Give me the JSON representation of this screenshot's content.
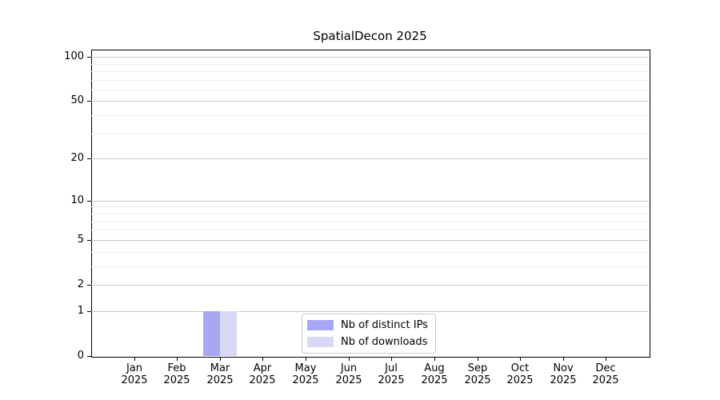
{
  "figure": {
    "title": "SpatialDecon 2025"
  },
  "chart_data": {
    "type": "bar",
    "title": "SpatialDecon 2025",
    "categories": [
      "Jan",
      "Feb",
      "Mar",
      "Apr",
      "May",
      "Jun",
      "Jul",
      "Aug",
      "Sep",
      "Oct",
      "Nov",
      "Dec"
    ],
    "tick_year": "2025",
    "series": [
      {
        "name": "Nb of distinct IPs",
        "color": "#a8a8f2",
        "values": [
          0,
          0,
          1,
          0,
          0,
          0,
          0,
          0,
          0,
          0,
          0,
          0
        ]
      },
      {
        "name": "Nb of downloads",
        "color": "#d9d9f7",
        "values": [
          0,
          0,
          1,
          0,
          0,
          0,
          0,
          0,
          0,
          0,
          0,
          0
        ]
      }
    ],
    "xlabel": "",
    "ylabel": "",
    "yscale": "log1p",
    "ylim": [
      0,
      112
    ],
    "yticks": [
      0,
      1,
      2,
      5,
      10,
      20,
      50,
      100
    ],
    "yticks_minor": [
      3,
      4,
      6,
      7,
      8,
      9,
      30,
      40,
      60,
      70,
      80,
      90
    ],
    "grid": "horizontal",
    "legend_position": "lower center"
  },
  "colors": {
    "background": "#ffffff",
    "spine": "#000000",
    "grid_major": "#c9c9c9",
    "grid_minor": "#ededed",
    "legend_border": "#c9c9c9",
    "bar_distinct_ips": "#a8a8f2",
    "bar_downloads": "#d9d9f7"
  }
}
